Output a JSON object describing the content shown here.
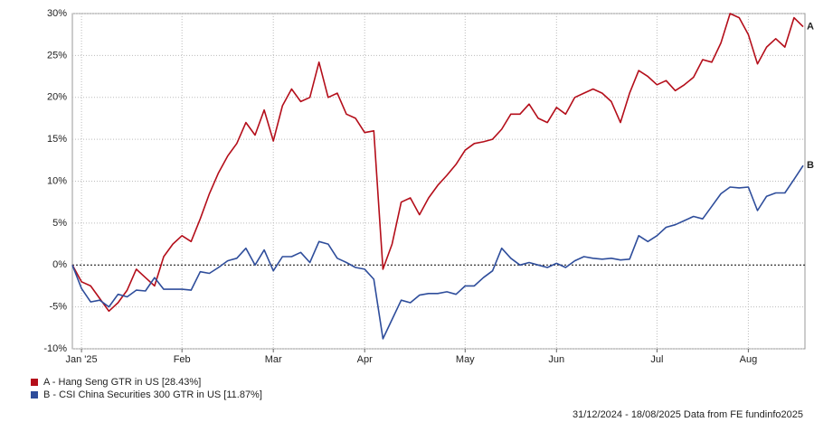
{
  "chart_data": {
    "type": "line",
    "categories": [
      null,
      "Jan '25",
      null,
      null,
      null,
      null,
      null,
      null,
      null,
      null,
      null,
      null,
      "Feb",
      null,
      null,
      null,
      null,
      null,
      null,
      null,
      null,
      null,
      "Mar",
      null,
      null,
      null,
      null,
      null,
      null,
      null,
      null,
      null,
      "Apr",
      null,
      null,
      null,
      null,
      null,
      null,
      null,
      null,
      null,
      null,
      "May",
      null,
      null,
      null,
      null,
      null,
      null,
      null,
      null,
      null,
      "Jun",
      null,
      null,
      null,
      null,
      null,
      null,
      null,
      null,
      null,
      null,
      "Jul",
      null,
      null,
      null,
      null,
      null,
      null,
      null,
      null,
      null,
      "Aug",
      null,
      null,
      null,
      null,
      null,
      null
    ],
    "series": [
      {
        "name": "A - Hang Seng GTR in US [28.43%]",
        "label": "A",
        "color": "#b40e1a",
        "values": [
          0,
          -2,
          -2.5,
          -4,
          -5.5,
          -4.5,
          -3,
          -0.5,
          -1.5,
          -2.5,
          1,
          2.5,
          3.5,
          2.8,
          5.5,
          8.5,
          11,
          13,
          14.5,
          17,
          15.5,
          18.5,
          14.8,
          19,
          21,
          19.5,
          20,
          24.2,
          20,
          20.5,
          18,
          17.5,
          15.8,
          16,
          -0.5,
          2.5,
          7.5,
          8,
          6,
          8,
          9.5,
          10.7,
          12,
          13.7,
          14.5,
          14.7,
          15,
          16.2,
          18,
          18,
          19.2,
          17.5,
          17,
          18.8,
          18,
          20,
          20.5,
          21,
          20.5,
          19.5,
          17,
          20.5,
          23.2,
          22.5,
          21.5,
          22,
          20.8,
          21.5,
          22.4,
          24.5,
          24.2,
          26.5,
          30,
          29.5,
          27.5,
          24,
          26,
          27,
          26,
          29.5,
          28.43
        ]
      },
      {
        "name": "B - CSI China Securities 300 GTR in US [11.87%]",
        "label": "B",
        "color": "#2e4d9b",
        "values": [
          0,
          -2.8,
          -4.4,
          -4.2,
          -5,
          -3.5,
          -3.8,
          -3,
          -3.1,
          -1.5,
          -2.9,
          -2.9,
          -2.9,
          -3,
          -0.8,
          -1,
          -0.3,
          0.5,
          0.8,
          2,
          0,
          1.8,
          -0.7,
          1,
          1,
          1.5,
          0.3,
          2.8,
          2.5,
          0.8,
          0.3,
          -0.3,
          -0.5,
          -1.7,
          -8.8,
          -6.5,
          -4.2,
          -4.5,
          -3.6,
          -3.4,
          -3.4,
          -3.2,
          -3.5,
          -2.5,
          -2.5,
          -1.5,
          -0.7,
          2,
          0.8,
          0,
          0.3,
          0,
          -0.3,
          0.2,
          -0.3,
          0.5,
          1,
          0.8,
          0.7,
          0.8,
          0.6,
          0.7,
          3.5,
          2.8,
          3.5,
          4.5,
          4.8,
          5.3,
          5.8,
          5.5,
          7,
          8.5,
          9.3,
          9.2,
          9.3,
          6.5,
          8.2,
          8.6,
          8.6,
          10.2,
          11.87
        ]
      }
    ],
    "ylim": [
      -10,
      30
    ],
    "yticks": [
      {
        "value": -10,
        "label": "-10%"
      },
      {
        "value": -5,
        "label": "-5%"
      },
      {
        "value": 0,
        "label": "0%"
      },
      {
        "value": 5,
        "label": "5%"
      },
      {
        "value": 10,
        "label": "10%"
      },
      {
        "value": 15,
        "label": "15%"
      },
      {
        "value": 20,
        "label": "20%"
      },
      {
        "value": 25,
        "label": "25%"
      },
      {
        "value": 30,
        "label": "30%"
      }
    ],
    "grid": true,
    "source": "31/12/2024 - 18/08/2025 Data from FE fundinfo2025"
  }
}
